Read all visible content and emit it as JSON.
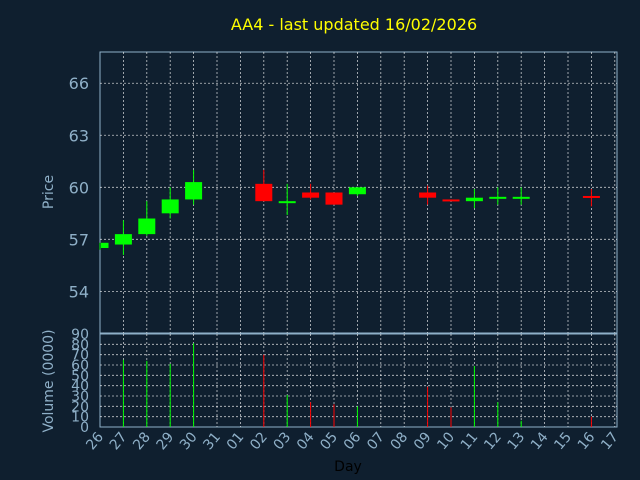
{
  "chart_data": [
    {
      "type": "candlestick",
      "title": "AA4 - last updated 16/02/2026",
      "ylabel": "Price",
      "ylim": [
        51.6,
        67.8
      ],
      "yticks": [
        54,
        57,
        60,
        63,
        66
      ],
      "grid": true,
      "categories": [
        "26",
        "27",
        "28",
        "29",
        "30",
        "31",
        "01",
        "02",
        "03",
        "04",
        "05",
        "06",
        "07",
        "08",
        "09",
        "10",
        "11",
        "12",
        "13",
        "14",
        "15",
        "16",
        "17"
      ],
      "candles": [
        {
          "day": "26",
          "open": 56.5,
          "close": 56.8,
          "high": 56.8,
          "low": 56.4
        },
        {
          "day": "27",
          "open": 56.7,
          "close": 57.3,
          "high": 58.1,
          "low": 56.1
        },
        {
          "day": "28",
          "open": 57.3,
          "close": 58.2,
          "high": 59.2,
          "low": 57.2
        },
        {
          "day": "29",
          "open": 58.5,
          "close": 59.3,
          "high": 60.0,
          "low": 58.2
        },
        {
          "day": "30",
          "open": 59.3,
          "close": 60.3,
          "high": 61.0,
          "low": 59.0
        },
        {
          "day": "02",
          "open": 60.2,
          "close": 59.2,
          "high": 61.0,
          "low": 59.2
        },
        {
          "day": "03",
          "open": 59.1,
          "close": 59.2,
          "high": 60.2,
          "low": 58.4
        },
        {
          "day": "04",
          "open": 59.7,
          "close": 59.4,
          "high": 60.2,
          "low": 59.3
        },
        {
          "day": "05",
          "open": 59.7,
          "close": 59.0,
          "high": 59.7,
          "low": 59.0
        },
        {
          "day": "06",
          "open": 59.6,
          "close": 60.0,
          "high": 60.0,
          "low": 59.5
        },
        {
          "day": "09",
          "open": 59.7,
          "close": 59.4,
          "high": 60.1,
          "low": 59.0
        },
        {
          "day": "10",
          "open": 59.3,
          "close": 59.2,
          "high": 59.3,
          "low": 59.2
        },
        {
          "day": "11",
          "open": 59.2,
          "close": 59.4,
          "high": 59.9,
          "low": 58.8
        },
        {
          "day": "12",
          "open": 59.35,
          "close": 59.45,
          "high": 60.0,
          "low": 59.0
        },
        {
          "day": "13",
          "open": 59.35,
          "close": 59.45,
          "high": 60.0,
          "low": 59.0
        },
        {
          "day": "16",
          "open": 59.5,
          "close": 59.4,
          "high": 59.9,
          "low": 58.9
        }
      ],
      "colors": {
        "up": "#00ff00",
        "down": "#ff0000"
      }
    },
    {
      "type": "bar",
      "ylabel": "Volume (0000)",
      "xlabel": "Day",
      "ylim": [
        0,
        90
      ],
      "yticks": [
        0,
        10,
        20,
        30,
        40,
        50,
        60,
        70,
        80,
        90
      ],
      "categories": [
        "26",
        "27",
        "28",
        "29",
        "30",
        "31",
        "01",
        "02",
        "03",
        "04",
        "05",
        "06",
        "07",
        "08",
        "09",
        "10",
        "11",
        "12",
        "13",
        "14",
        "15",
        "16",
        "17"
      ],
      "values": [
        {
          "day": "27",
          "volume": 65,
          "dir": "up"
        },
        {
          "day": "28",
          "volume": 64,
          "dir": "up"
        },
        {
          "day": "29",
          "volume": 61,
          "dir": "up"
        },
        {
          "day": "30",
          "volume": 81,
          "dir": "up"
        },
        {
          "day": "02",
          "volume": 70,
          "dir": "down"
        },
        {
          "day": "03",
          "volume": 31,
          "dir": "up"
        },
        {
          "day": "04",
          "volume": 24,
          "dir": "down"
        },
        {
          "day": "05",
          "volume": 22,
          "dir": "down"
        },
        {
          "day": "06",
          "volume": 20,
          "dir": "up"
        },
        {
          "day": "09",
          "volume": 39,
          "dir": "down"
        },
        {
          "day": "10",
          "volume": 19,
          "dir": "down"
        },
        {
          "day": "11",
          "volume": 59,
          "dir": "up"
        },
        {
          "day": "12",
          "volume": 24,
          "dir": "up"
        },
        {
          "day": "13",
          "volume": 6,
          "dir": "up"
        },
        {
          "day": "16",
          "volume": 10,
          "dir": "down"
        }
      ]
    }
  ],
  "colors": {
    "background": "#0f1f2f",
    "axis": "#8fb0c8",
    "tick_label": "#8fb0c8",
    "title": "#ffff00",
    "day_label": "#000000",
    "grid": "#ffffff"
  }
}
